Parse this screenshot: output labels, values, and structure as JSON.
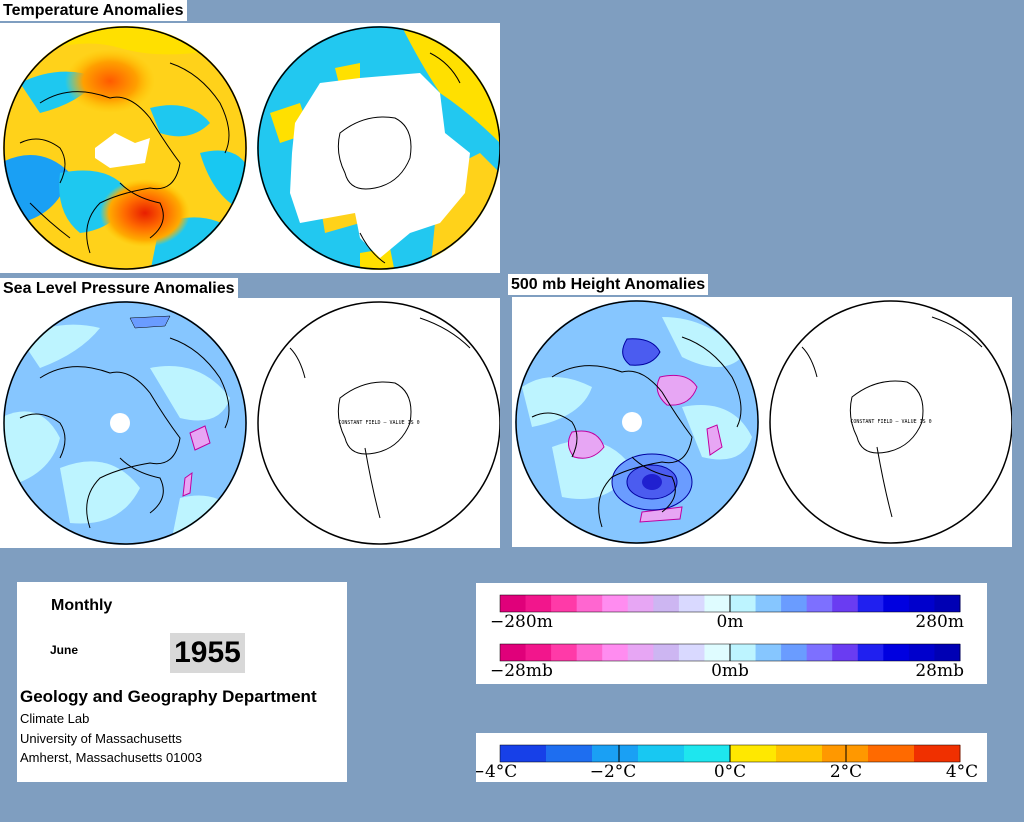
{
  "sections": {
    "temperature": "Temperature Anomalies",
    "slp": "Sea Level Pressure Anomalies",
    "height500": "500 mb Height Anomalies"
  },
  "map_note": "CONSTANT FIELD — VALUE IS 0",
  "info": {
    "frequency": "Monthly",
    "month": "June",
    "year": "1955",
    "department": "Geology and Geography Department",
    "lines": [
      "Climate Lab",
      "University of Massachusetts",
      "Amherst, Massachusetts 01003"
    ]
  },
  "legends": {
    "height": {
      "colors": [
        "#e0007a",
        "#f2168c",
        "#ff3aa8",
        "#ff66d0",
        "#ff8cf0",
        "#e7a6f4",
        "#cdb6f2",
        "#d9d9ff",
        "#dffcff",
        "#bdf4ff",
        "#86c6ff",
        "#6a9cff",
        "#7d70ff",
        "#6a3cf2",
        "#2020f0",
        "#0000e0",
        "#0000cc",
        "#0000b4"
      ],
      "labels": [
        "−280m",
        "0m",
        "280m"
      ]
    },
    "pressure": {
      "colors": [
        "#e0007a",
        "#f2168c",
        "#ff3aa8",
        "#ff66d0",
        "#ff8cf0",
        "#e7a6f4",
        "#cdb6f2",
        "#d9d9ff",
        "#dffcff",
        "#bdf4ff",
        "#86c6ff",
        "#6a9cff",
        "#7d70ff",
        "#6a3cf2",
        "#2020f0",
        "#0000e0",
        "#0000cc",
        "#0000b4"
      ],
      "labels": [
        "−28mb",
        "0mb",
        "28mb"
      ]
    },
    "temperature": {
      "colors": [
        "#1740e8",
        "#1e6ef0",
        "#1aa0f4",
        "#18c8f2",
        "#1ee6ee",
        "#ffe800",
        "#ffc400",
        "#ff9800",
        "#ff6a00",
        "#f03000"
      ],
      "labels": [
        "−4°C",
        "−2°C",
        "0°C",
        "2°C",
        "4°C"
      ]
    }
  }
}
